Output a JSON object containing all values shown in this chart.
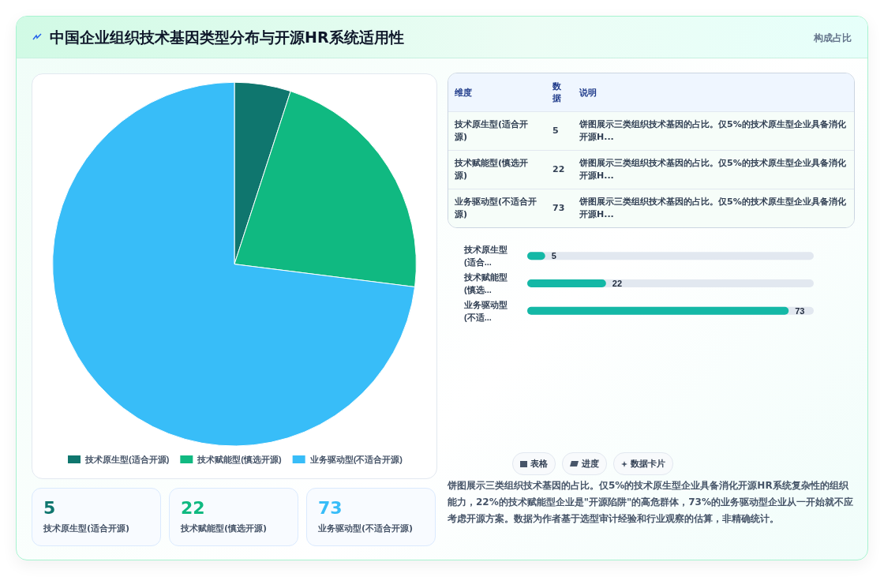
{
  "chart_data": [
    {
      "type": "pie",
      "title": "中国企业组织技术基因类型分布与开源HR系统适用性",
      "categories": [
        "技术原生型(适合开源)",
        "技术赋能型(慎选开源)",
        "业务驱动型(不适合开源)"
      ],
      "values": [
        5,
        22,
        73
      ],
      "colors": [
        "#0f766e",
        "#10b981",
        "#38bdf8"
      ],
      "legend": "bottom",
      "annotations": [
        "饼图展示三类组织技术基因的占比。仅5%的技术原生型企业具备消化开源HR系统复杂性的组织能力，22%的技术赋能型企业是\"开源陷阱\"的高危群体，73%的业务驱动型企业从一开始就不应考虑开源方案。数据为作者基于选型审计经验和行业观察的估算，非精确统计。",
        "表格",
        "进度",
        "数据卡片"
      ]
    },
    {
      "type": "other",
      "title": "构成占比",
      "annotations": [
        "维度",
        "数据",
        "说明",
        "技术原生型(适合开源)",
        "5",
        "饼图展示三类组织技术基因的占比。仅5%的技术原生型企业具备消化开源H...",
        "技术赋能型(慎选开源)",
        "22",
        "饼图展示三类组织技术基因的占比。仅5%的技术原生型企业具备消化开源H...",
        "业务驱动型(不适合开源)",
        "73",
        "饼图展示三类组织技术基因的占比。仅5%的技术原生型企业具备消化开源H..."
      ]
    },
    {
      "type": "bar",
      "orientation": "horizontal",
      "categories": [
        "技术原生型(适合...",
        "技术赋能型(慎选...",
        "业务驱动型(不适..."
      ],
      "values": [
        5,
        22,
        73
      ],
      "color": "#14b8a6",
      "data_labels": true
    },
    {
      "type": "other",
      "annotations": [
        "5",
        "技术原生型(适合开源)",
        "22",
        "技术赋能型(慎选开源)",
        "73",
        "业务驱动型(不适合开源)"
      ]
    }
  ]
}
